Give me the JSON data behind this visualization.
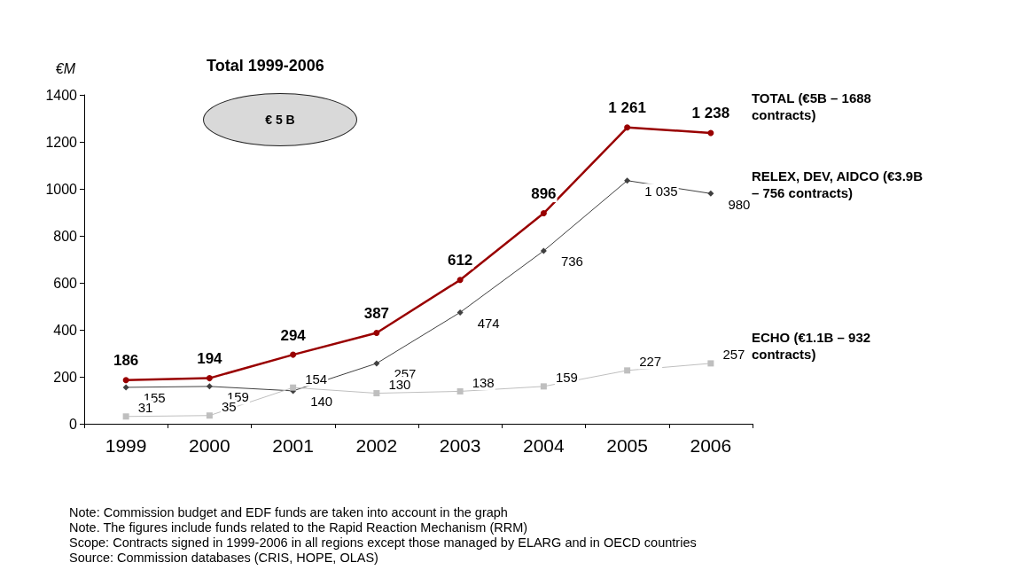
{
  "chart_data": {
    "type": "line",
    "title": "Total 1999-2006",
    "ylabel": "€M",
    "categories": [
      "1999",
      "2000",
      "2001",
      "2002",
      "2003",
      "2004",
      "2005",
      "2006"
    ],
    "series": [
      {
        "name": "TOTAL (€5B – 1688 contracts)",
        "color": "#990000",
        "marker": "circle",
        "values": [
          186,
          194,
          294,
          387,
          612,
          896,
          1261,
          1238
        ],
        "value_labels": [
          "186",
          "194",
          "294",
          "387",
          "612",
          "896",
          "1 261",
          "1 238"
        ]
      },
      {
        "name": "RELEX, DEV, AIDCO (€3.9B – 756 contracts)",
        "color": "#404040",
        "marker": "diamond",
        "values": [
          155,
          159,
          140,
          257,
          474,
          736,
          1035,
          980
        ],
        "value_labels": [
          "155",
          "159",
          "140",
          "257",
          "474",
          "736",
          "1 035",
          "980"
        ]
      },
      {
        "name": "ECHO (€1.1B – 932 contracts)",
        "color": "#bfbfbf",
        "marker": "square",
        "values": [
          31,
          35,
          154,
          130,
          138,
          159,
          227,
          257
        ],
        "value_labels": [
          "31",
          "35",
          "154",
          "130",
          "138",
          "159",
          "227",
          "257"
        ]
      }
    ],
    "ylim": [
      0,
      1400
    ],
    "yticks": [
      0,
      200,
      400,
      600,
      800,
      1000,
      1200,
      1400
    ],
    "grid": false,
    "legend": false,
    "annotations": [
      "€ 5 B",
      "Note: Commission budget and EDF funds are taken into account in the graph",
      "Note. The figures include funds related to the Rapid Reaction Mechanism (RRM)",
      "Scope: Contracts signed in 1999-2006 in all regions except those managed by ELARG and in OECD countries",
      "Source: Commission databases (CRIS, HOPE, OLAS)"
    ]
  }
}
